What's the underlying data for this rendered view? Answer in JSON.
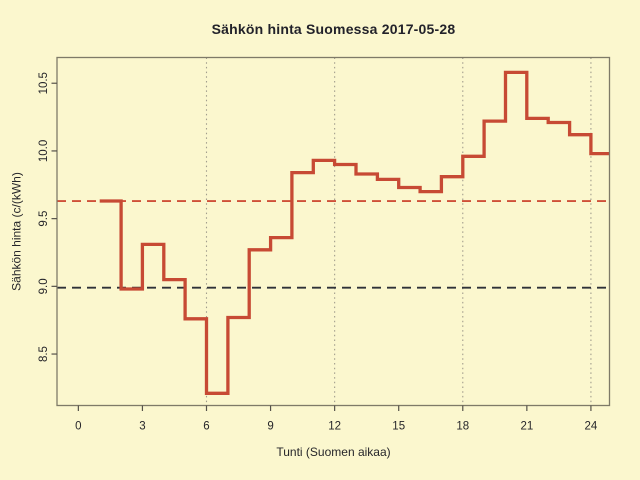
{
  "title": "Sähkön hinta Suomessa 2017-05-28",
  "chart_data": {
    "type": "line",
    "subtype": "step",
    "title": "Sähkön hinta Suomessa 2017-05-28",
    "xlabel": "Tunti (Suomen aikaa)",
    "ylabel": "Sähkön hinta (c/(kWh)",
    "x": [
      1,
      2,
      3,
      4,
      5,
      6,
      7,
      8,
      9,
      10,
      11,
      12,
      13,
      14,
      15,
      16,
      17,
      18,
      19,
      20,
      21,
      22,
      23,
      24
    ],
    "values": [
      9.63,
      8.98,
      9.31,
      9.05,
      8.76,
      8.21,
      8.77,
      9.27,
      9.36,
      9.84,
      9.93,
      9.9,
      9.83,
      9.79,
      9.73,
      9.7,
      9.81,
      9.96,
      10.22,
      10.58,
      10.24,
      10.21,
      10.12,
      9.98
    ],
    "xlim": [
      -1.0,
      24.87
    ],
    "ylim": [
      8.12,
      10.69
    ],
    "xticks": [
      {
        "v": 0,
        "label": "0"
      },
      {
        "v": 3,
        "label": "3"
      },
      {
        "v": 6,
        "label": "6"
      },
      {
        "v": 9,
        "label": "9"
      },
      {
        "v": 12,
        "label": "12"
      },
      {
        "v": 15,
        "label": "15"
      },
      {
        "v": 18,
        "label": "18"
      },
      {
        "v": 21,
        "label": "21"
      },
      {
        "v": 24,
        "label": "24"
      }
    ],
    "yticks": [
      {
        "v": 8.5,
        "label": "8.5"
      },
      {
        "v": 9.0,
        "label": "9.0"
      },
      {
        "v": 9.5,
        "label": "9.5"
      },
      {
        "v": 10.0,
        "label": "10.0"
      },
      {
        "v": 10.5,
        "label": "10.5"
      }
    ],
    "grid_x": [
      6,
      12,
      18,
      24
    ],
    "grid_on": true,
    "legend": null,
    "ref_lines": [
      {
        "name": "mean-price-line",
        "value": 9.63,
        "color": "#cf5038",
        "style": "dashed"
      },
      {
        "name": "reference-price-line",
        "value": 8.99,
        "color": "#2e3138",
        "style": "dashed"
      }
    ],
    "colors": {
      "background": "#fbf7ce",
      "line": "#c74a34",
      "grid": "#a19d8d",
      "box": "#7e7a68",
      "axis": "#55524a",
      "text": "#26262a"
    }
  }
}
